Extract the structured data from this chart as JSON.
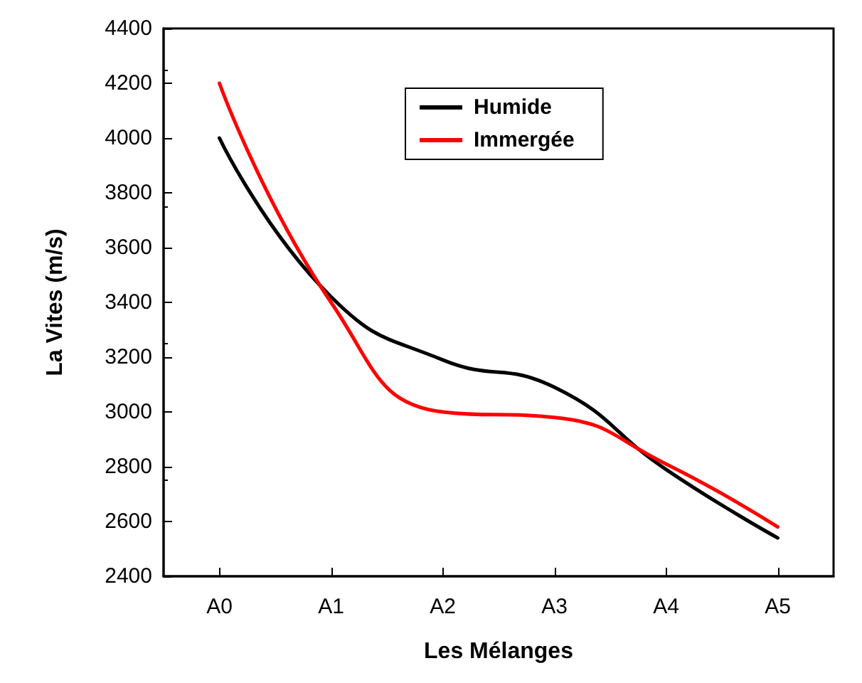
{
  "chart_data": {
    "type": "line",
    "xlabel": "Les Mélanges",
    "ylabel": "La Vites (m/s)",
    "categories": [
      "A0",
      "A1",
      "A2",
      "A3",
      "A4",
      "A5"
    ],
    "series": [
      {
        "name": "Humide",
        "color": "#000000",
        "values": [
          4000,
          3420,
          3190,
          3090,
          2790,
          2540
        ]
      },
      {
        "name": "Immergée",
        "color": "#ff0000",
        "values": [
          4200,
          3400,
          3000,
          2980,
          2810,
          2580
        ]
      }
    ],
    "ylim": [
      2400,
      4400
    ],
    "yticks": [
      2400,
      2600,
      2800,
      3000,
      3200,
      3400,
      3600,
      3800,
      4000,
      4200,
      4400
    ],
    "grid": false,
    "legend": "top",
    "marker": "none",
    "line_style": "solid"
  }
}
